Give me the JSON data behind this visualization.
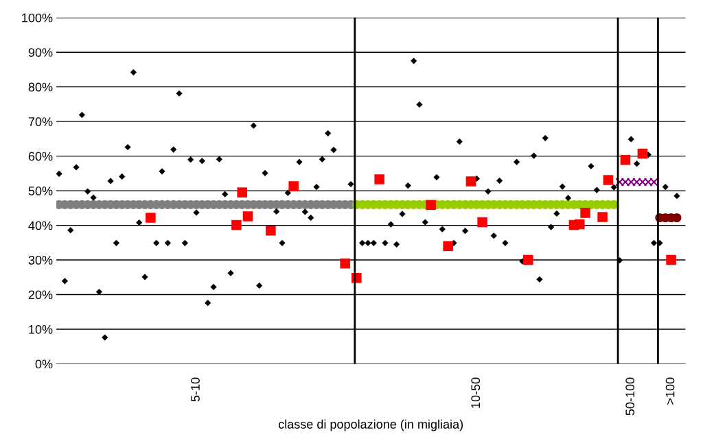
{
  "chart_data": {
    "type": "scatter",
    "xlabel": "classe di popolazione (in migliaia)",
    "categories": [
      null,
      null,
      null,
      null,
      null,
      null,
      null,
      null,
      null,
      null,
      null,
      null,
      null,
      null,
      null,
      null,
      null,
      null,
      null,
      null,
      null,
      null,
      null,
      null,
      "5-10",
      null,
      null,
      null,
      null,
      null,
      null,
      null,
      null,
      null,
      null,
      null,
      null,
      null,
      null,
      null,
      null,
      null,
      null,
      null,
      null,
      null,
      null,
      null,
      null,
      null,
      null,
      null,
      null,
      null,
      null,
      null,
      null,
      null,
      null,
      null,
      null,
      null,
      null,
      null,
      null,
      null,
      null,
      null,
      null,
      null,
      null,
      null,
      null,
      "10-50",
      null,
      null,
      null,
      null,
      null,
      null,
      null,
      null,
      null,
      null,
      null,
      null,
      null,
      null,
      null,
      null,
      null,
      null,
      null,
      null,
      null,
      null,
      null,
      null,
      null,
      null,
      "50-100",
      null,
      null,
      null,
      null,
      null,
      null,
      ">100",
      null,
      null
    ],
    "ylim": [
      0,
      100
    ],
    "yticks": [
      {
        "value": 0,
        "label": "0%"
      },
      {
        "value": 10,
        "label": "10%"
      },
      {
        "value": 20,
        "label": "20%"
      },
      {
        "value": 30,
        "label": "30%"
      },
      {
        "value": 40,
        "label": "40%"
      },
      {
        "value": 50,
        "label": "50%"
      },
      {
        "value": 60,
        "label": "60%"
      },
      {
        "value": 70,
        "label": "70%"
      },
      {
        "value": 80,
        "label": "80%"
      },
      {
        "value": 90,
        "label": "90%"
      },
      {
        "value": 100,
        "label": "100%"
      }
    ],
    "grid": "y",
    "series": [
      {
        "color": "#808080",
        "marker": "circle",
        "values": [
          46,
          46,
          46,
          46,
          46,
          46,
          46,
          46,
          46,
          46,
          46,
          46,
          46,
          46,
          46,
          46,
          46,
          46,
          46,
          46,
          46,
          46,
          46,
          46,
          46,
          46,
          46,
          46,
          46,
          46,
          46,
          46,
          46,
          46,
          46,
          46,
          46,
          46,
          46,
          46,
          46,
          46,
          46,
          46,
          46,
          46,
          46,
          46,
          46,
          46,
          46,
          46,
          null,
          null,
          null,
          null,
          null,
          null,
          null,
          null,
          null,
          null,
          null,
          null,
          null,
          null,
          null,
          null,
          null,
          null,
          null,
          null,
          null,
          null,
          null,
          null,
          null,
          null,
          null,
          null,
          null,
          null,
          null,
          null,
          null,
          null,
          null,
          null,
          null,
          null,
          null,
          null,
          null,
          null,
          null,
          null,
          null,
          null,
          null,
          null,
          null,
          null,
          null,
          null,
          null,
          null,
          null,
          null,
          null,
          null
        ]
      },
      {
        "color": "#99cc00",
        "marker": "circle",
        "values": [
          null,
          null,
          null,
          null,
          null,
          null,
          null,
          null,
          null,
          null,
          null,
          null,
          null,
          null,
          null,
          null,
          null,
          null,
          null,
          null,
          null,
          null,
          null,
          null,
          null,
          null,
          null,
          null,
          null,
          null,
          null,
          null,
          null,
          null,
          null,
          null,
          null,
          null,
          null,
          null,
          null,
          null,
          null,
          null,
          null,
          null,
          null,
          null,
          null,
          null,
          null,
          null,
          46,
          46,
          46,
          46,
          46,
          46,
          46,
          46,
          46,
          46,
          46,
          46,
          46,
          null,
          46,
          46,
          46,
          46,
          46,
          46,
          46,
          46,
          46,
          46,
          46,
          46,
          46,
          46,
          46,
          46,
          46,
          46,
          46,
          46,
          46,
          46,
          46,
          46,
          46,
          46,
          46,
          46,
          46,
          46,
          46,
          46,
          null,
          null,
          null,
          null,
          null,
          null,
          null,
          null,
          null,
          null,
          null,
          null
        ]
      },
      {
        "color": "#800080",
        "marker": "cross",
        "values": [
          null,
          null,
          null,
          null,
          null,
          null,
          null,
          null,
          null,
          null,
          null,
          null,
          null,
          null,
          null,
          null,
          null,
          null,
          null,
          null,
          null,
          null,
          null,
          null,
          null,
          null,
          null,
          null,
          null,
          null,
          null,
          null,
          null,
          null,
          null,
          null,
          null,
          null,
          null,
          null,
          null,
          null,
          null,
          null,
          null,
          null,
          null,
          null,
          null,
          null,
          null,
          null,
          null,
          null,
          null,
          null,
          null,
          null,
          null,
          null,
          null,
          null,
          null,
          null,
          null,
          null,
          null,
          null,
          null,
          null,
          null,
          null,
          null,
          null,
          null,
          null,
          null,
          null,
          null,
          null,
          null,
          null,
          null,
          null,
          null,
          null,
          null,
          null,
          null,
          null,
          null,
          null,
          null,
          null,
          null,
          null,
          null,
          null,
          52.5,
          52.5,
          52.5,
          52.5,
          52.5,
          52.5,
          52.5,
          null,
          null,
          null,
          null,
          null
        ]
      },
      {
        "color": "#800000",
        "marker": "circle",
        "values": [
          null,
          null,
          null,
          null,
          null,
          null,
          null,
          null,
          null,
          null,
          null,
          null,
          null,
          null,
          null,
          null,
          null,
          null,
          null,
          null,
          null,
          null,
          null,
          null,
          null,
          null,
          null,
          null,
          null,
          null,
          null,
          null,
          null,
          null,
          null,
          null,
          null,
          null,
          null,
          null,
          null,
          null,
          null,
          null,
          null,
          null,
          null,
          null,
          null,
          null,
          null,
          null,
          null,
          null,
          null,
          null,
          null,
          null,
          null,
          null,
          null,
          null,
          null,
          null,
          null,
          null,
          null,
          null,
          null,
          null,
          null,
          null,
          null,
          null,
          null,
          null,
          null,
          null,
          null,
          null,
          null,
          null,
          null,
          null,
          null,
          null,
          null,
          null,
          null,
          null,
          null,
          null,
          null,
          null,
          null,
          null,
          null,
          null,
          null,
          null,
          null,
          null,
          null,
          null,
          null,
          42.2,
          42.2,
          42.2,
          42.2,
          null
        ]
      },
      {
        "color": "#000000",
        "marker": "diamond",
        "values": [
          54.9,
          23.9,
          38.6,
          56.8,
          71.9,
          49.8,
          48,
          20.8,
          7.6,
          52.8,
          34.9,
          54.1,
          62.6,
          84.2,
          40.8,
          25.1,
          null,
          34.9,
          55.6,
          34.9,
          61.9,
          78.1,
          34.9,
          59,
          43.7,
          58.6,
          17.6,
          22.2,
          59.1,
          49,
          26.2,
          null,
          null,
          null,
          68.8,
          22.6,
          55.1,
          null,
          44,
          34.9,
          49.4,
          null,
          58.3,
          43.9,
          42.2,
          51.1,
          59.1,
          66.6,
          61.8,
          null,
          null,
          51.9,
          null,
          34.9,
          34.9,
          34.9,
          null,
          34.9,
          40.3,
          34.5,
          43.3,
          51.5,
          87.5,
          74.9,
          40.9,
          null,
          53.9,
          38.9,
          null,
          34.9,
          64.2,
          38.4,
          null,
          53.5,
          null,
          49.8,
          37,
          52.9,
          34.9,
          null,
          58.3,
          29.6,
          null,
          60.1,
          24.4,
          65.2,
          39.5,
          43.4,
          51.2,
          47.9,
          null,
          null,
          null,
          57.1,
          50.2,
          null,
          null,
          51,
          29.9,
          null,
          64.9,
          57.8,
          null,
          60.4,
          34.9,
          34.9,
          51.1,
          null,
          48.5,
          null
        ]
      },
      {
        "color": "#ff0000",
        "marker": "square",
        "values": [
          null,
          null,
          null,
          null,
          null,
          null,
          null,
          null,
          null,
          null,
          null,
          null,
          null,
          null,
          null,
          null,
          42.2,
          null,
          null,
          null,
          null,
          null,
          null,
          null,
          null,
          null,
          null,
          null,
          null,
          null,
          null,
          40.1,
          49.5,
          42.6,
          null,
          null,
          null,
          38.5,
          null,
          null,
          null,
          51.3,
          null,
          null,
          null,
          null,
          null,
          null,
          null,
          null,
          29,
          null,
          24.8,
          null,
          null,
          null,
          53.3,
          null,
          null,
          null,
          null,
          null,
          null,
          null,
          null,
          45.9,
          null,
          null,
          34,
          null,
          null,
          null,
          52.7,
          null,
          40.9,
          null,
          null,
          null,
          null,
          null,
          null,
          null,
          30,
          null,
          null,
          null,
          null,
          null,
          null,
          null,
          40.1,
          40.3,
          43.6,
          null,
          null,
          42.4,
          53.1,
          null,
          null,
          58.9,
          null,
          null,
          60.7,
          null,
          null,
          null,
          null,
          30,
          null,
          null
        ]
      }
    ]
  }
}
